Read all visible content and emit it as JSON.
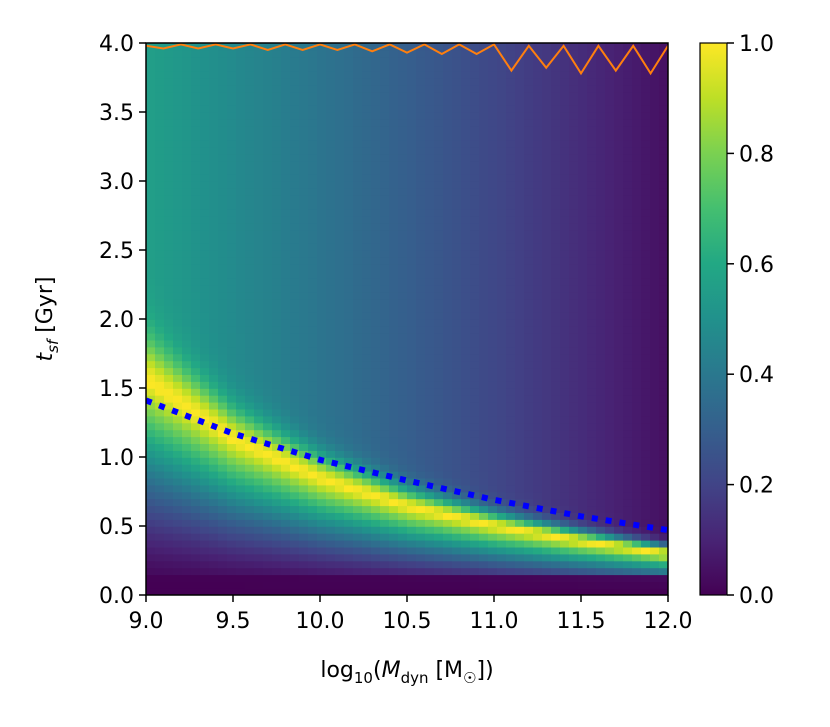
{
  "chart_data": {
    "type": "heatmap",
    "title": "",
    "xlabel": "log10(M_dyn [M_sun])",
    "ylabel": "t_sf [Gyr]",
    "xlim": [
      9.0,
      12.0
    ],
    "ylim": [
      0.0,
      4.0
    ],
    "x_ticks": [
      "9.0",
      "9.5",
      "10.0",
      "10.5",
      "11.0",
      "11.5",
      "12.0"
    ],
    "y_ticks": [
      "0.0",
      "0.5",
      "1.0",
      "1.5",
      "2.0",
      "2.5",
      "3.0",
      "3.5",
      "4.0"
    ],
    "colorbar": {
      "colormap": "viridis",
      "range": [
        0.0,
        1.0
      ],
      "ticks": [
        "0.0",
        "0.2",
        "0.4",
        "0.6",
        "0.8",
        "1.0"
      ]
    },
    "heatmap_ridge": {
      "x": [
        9.0,
        9.5,
        10.0,
        10.5,
        11.0,
        11.5,
        12.0
      ],
      "y": [
        1.55,
        1.12,
        0.84,
        0.64,
        0.5,
        0.39,
        0.3
      ]
    },
    "series": [
      {
        "style": "dotted",
        "color": "#0000ff",
        "x": [
          9.0,
          9.5,
          10.0,
          10.5,
          11.0,
          11.5,
          12.0
        ],
        "y": [
          1.41,
          1.17,
          0.98,
          0.83,
          0.69,
          0.57,
          0.47
        ]
      },
      {
        "style": "solid",
        "color": "#ff7f0e",
        "x": [
          9.0,
          9.1,
          9.2,
          9.3,
          9.4,
          9.5,
          9.6,
          9.7,
          9.8,
          9.9,
          10.0,
          10.1,
          10.2,
          10.3,
          10.4,
          10.5,
          10.6,
          10.7,
          10.8,
          10.9,
          11.0,
          11.1,
          11.2,
          11.3,
          11.4,
          11.5,
          11.6,
          11.7,
          11.8,
          11.9,
          12.0
        ],
        "y": [
          3.98,
          3.96,
          3.99,
          3.96,
          3.99,
          3.96,
          3.99,
          3.95,
          3.99,
          3.95,
          3.99,
          3.95,
          3.99,
          3.94,
          3.99,
          3.93,
          3.99,
          3.92,
          3.99,
          3.92,
          3.99,
          3.8,
          3.98,
          3.82,
          3.98,
          3.78,
          3.98,
          3.8,
          3.98,
          3.78,
          3.98
        ]
      }
    ],
    "grid": false,
    "legend": "none"
  }
}
